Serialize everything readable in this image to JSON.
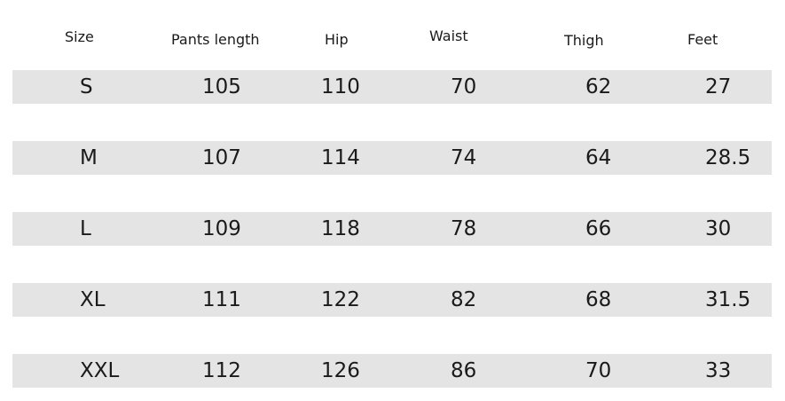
{
  "headers": [
    "Size",
    "Pants length",
    "Hip",
    "Waist",
    "Thigh",
    "Feet"
  ],
  "rows": [
    [
      "S",
      "105",
      "110",
      "70",
      "62",
      "27"
    ],
    [
      "M",
      "107",
      "114",
      "74",
      "64",
      "28.5"
    ],
    [
      "L",
      "109",
      "118",
      "78",
      "66",
      "30"
    ],
    [
      "XL",
      "111",
      "122",
      "82",
      "68",
      "31.5"
    ],
    [
      "XXL",
      "112",
      "126",
      "86",
      "70",
      "33"
    ]
  ],
  "colors": {
    "row_band": "#e4e4e4",
    "text": "#1a1a1a",
    "background": "#ffffff"
  }
}
